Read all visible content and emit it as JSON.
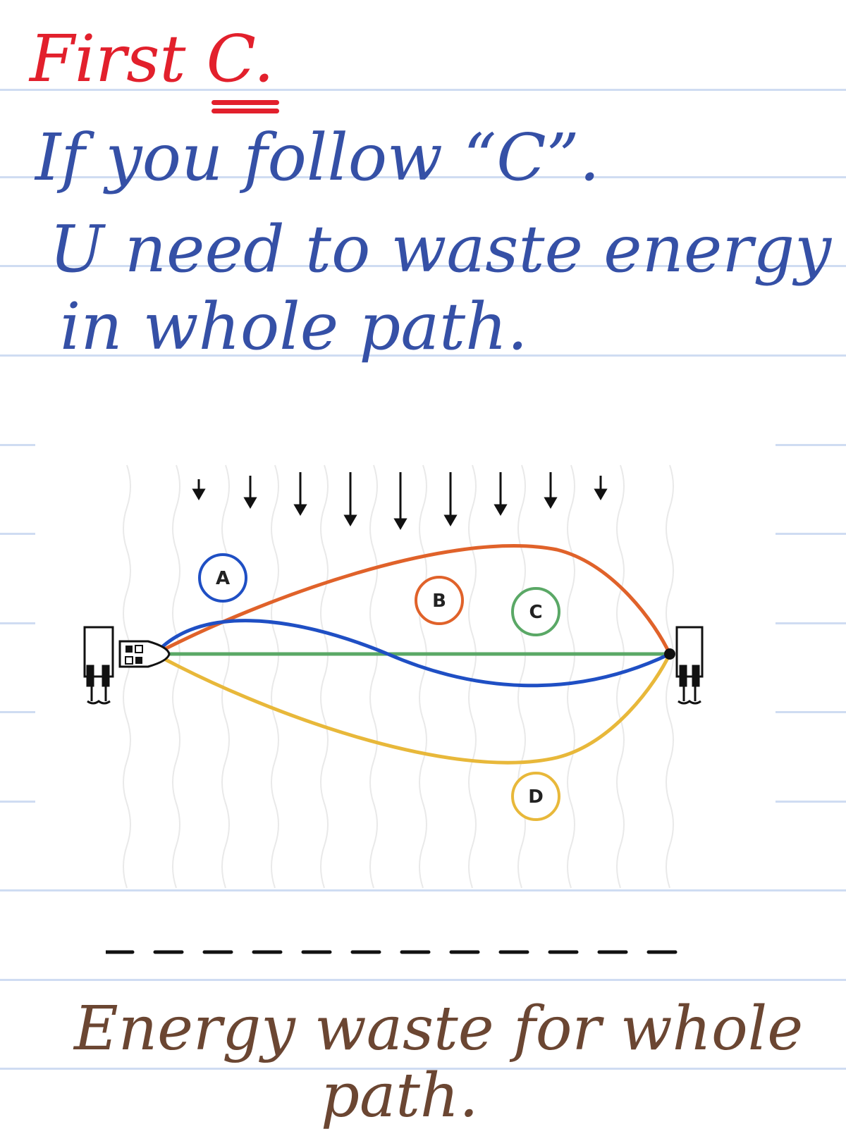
{
  "heading": "First C.",
  "notes": {
    "line1": "If you follow “C”.",
    "line2": "U need to waste energy",
    "line3": "in whole path.",
    "line4": "Energy waste for whole",
    "line5": "path."
  },
  "diagram": {
    "path_labels": [
      "A",
      "B",
      "C",
      "D"
    ],
    "path_colors": {
      "A": "#1f4fc4",
      "B": "#e0622a",
      "C": "#5aa866",
      "D": "#e8b83a"
    },
    "arrow_icon": "down-arrow-icon",
    "boat_icon": "boat-icon",
    "dock_icon": "dock-icon"
  },
  "colors": {
    "heading": "#e2202c",
    "note_blue": "#3550a6",
    "note_brown": "#6b4632",
    "rule_line": "#cfdcf2"
  }
}
